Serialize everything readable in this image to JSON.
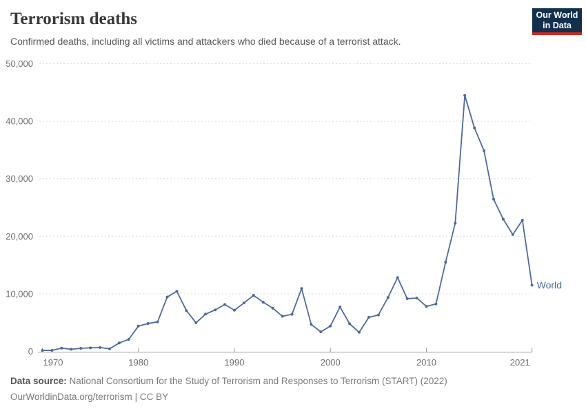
{
  "header": {
    "title": "Terrorism deaths",
    "subtitle": "Confirmed deaths, including all victims and attackers who died because of a terrorist attack."
  },
  "logo": {
    "line1": "Our World",
    "line2": "in Data",
    "bg_color": "#12304E",
    "accent_color": "#D22A1B"
  },
  "chart_data": {
    "type": "line",
    "title": "Terrorism deaths",
    "xlabel": "",
    "ylabel": "",
    "xlim": [
      1970,
      2021
    ],
    "ylim": [
      0,
      50000
    ],
    "grid": "horizontal dashed",
    "legend_position": "end-of-line label",
    "end_label": "World",
    "line_color": "#4C6A9C",
    "axis_color": "#9a9a9a",
    "grid_color": "#dcdcdc",
    "tick_label_color": "#6e6e6e",
    "yticks": [
      0,
      10000,
      20000,
      30000,
      40000,
      50000
    ],
    "ytick_labels": [
      "0",
      "10,000",
      "20,000",
      "30,000",
      "40,000",
      "50,000"
    ],
    "xticks": [
      1970,
      1980,
      1990,
      2000,
      2010,
      2021
    ],
    "x": [
      1970,
      1971,
      1972,
      1973,
      1974,
      1975,
      1976,
      1977,
      1978,
      1979,
      1980,
      1981,
      1982,
      1983,
      1984,
      1985,
      1986,
      1987,
      1988,
      1989,
      1990,
      1991,
      1992,
      1993,
      1994,
      1995,
      1996,
      1997,
      1998,
      1999,
      2000,
      2001,
      2002,
      2003,
      2004,
      2005,
      2006,
      2007,
      2008,
      2009,
      2010,
      2011,
      2012,
      2013,
      2014,
      2015,
      2016,
      2017,
      2018,
      2019,
      2020,
      2021
    ],
    "series": [
      {
        "name": "World",
        "values": [
          171,
          173,
          566,
          370,
          539,
          617,
          672,
          456,
          1459,
          2100,
          4400,
          4851,
          5135,
          9444,
          10450,
          7094,
          4976,
          6482,
          7208,
          8152,
          7148,
          8429,
          9742,
          8550,
          7500,
          6104,
          6450,
          10924,
          4688,
          3393,
          4405,
          7729,
          4805,
          3317,
          5916,
          6331,
          9380,
          12824,
          9160,
          9273,
          7827,
          8246,
          15497,
          22273,
          44490,
          38853,
          34871,
          26445,
          22980,
          20309,
          22801,
          11500
        ]
      }
    ]
  },
  "footer": {
    "source_label": "Data source:",
    "source_text": "National Consortium for the Study of Terrorism and Responses to Terrorism (START) (2022)",
    "link": "OurWorldinData.org/terrorism",
    "license": " | CC BY"
  }
}
